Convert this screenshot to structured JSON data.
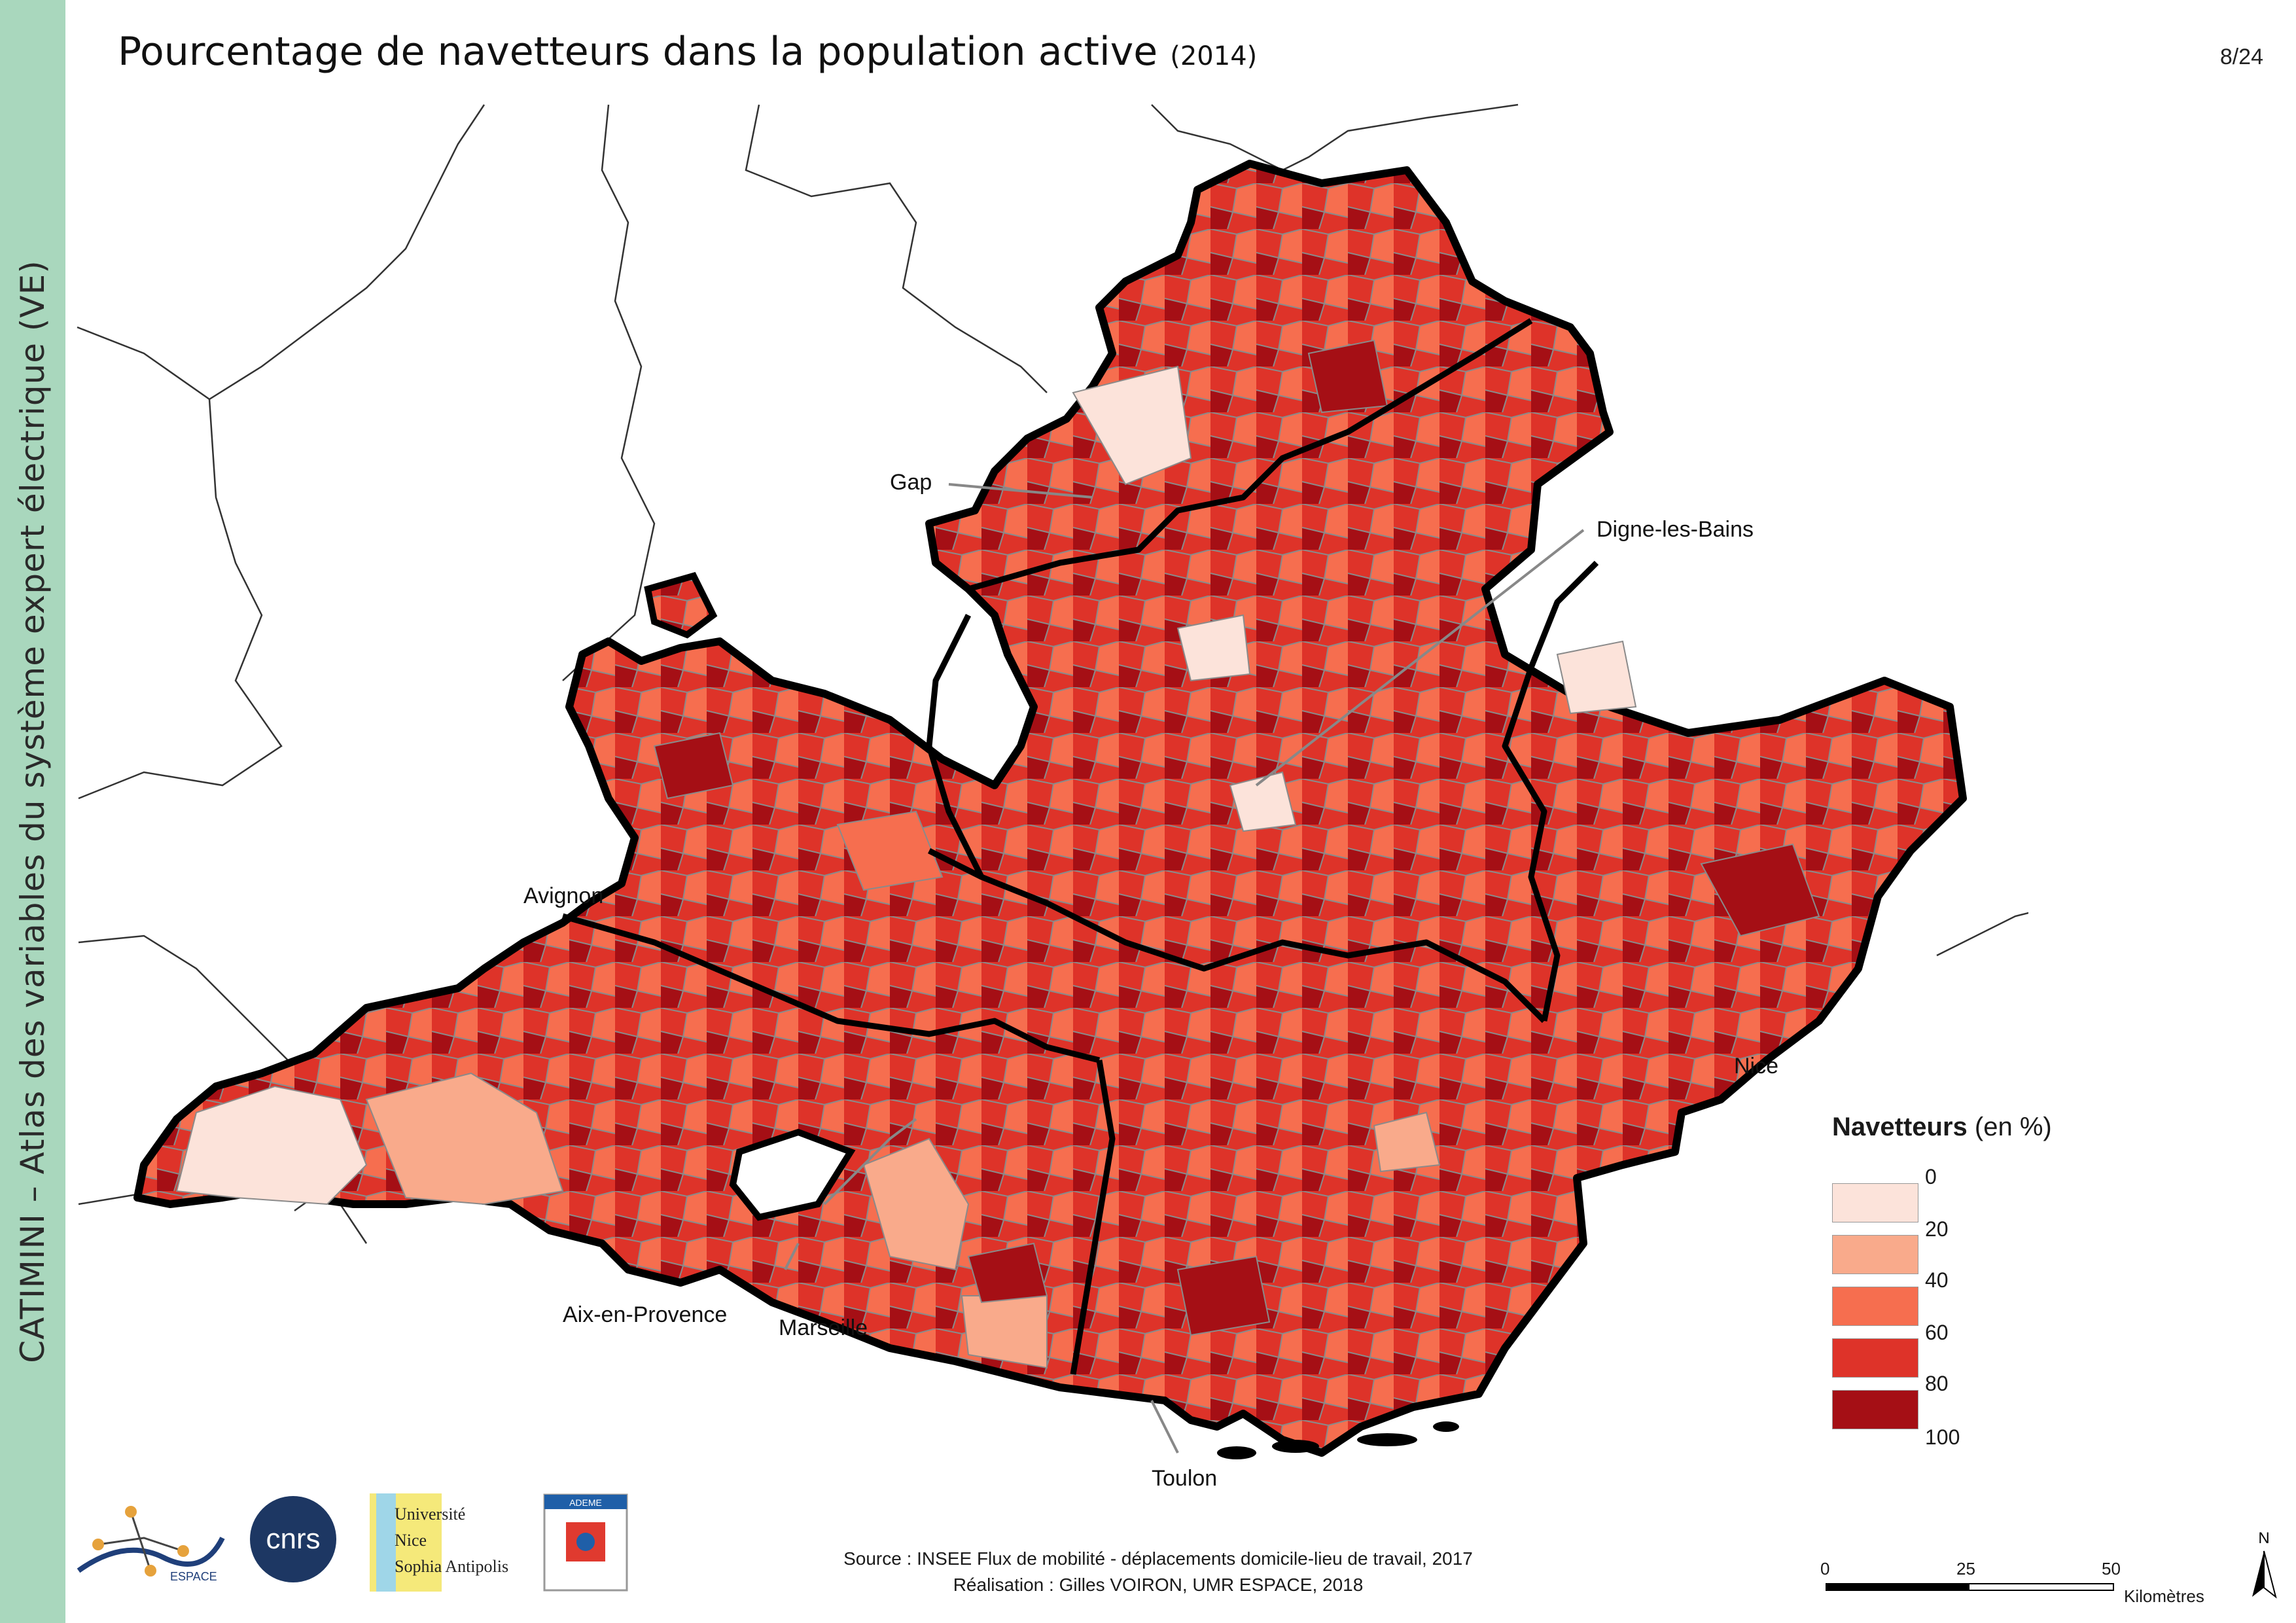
{
  "sidebar": {
    "text": "CATIMINI – Atlas des variables du système expert électrique (VE)"
  },
  "header": {
    "title": "Pourcentage de navetteurs dans la population active",
    "year": "(2014)",
    "page": "8/24"
  },
  "map": {
    "cities": [
      "Gap",
      "Digne-les-Bains",
      "Avignon",
      "Nice",
      "Aix-en-Provence",
      "Marseille",
      "Toulon"
    ],
    "region_outline_color": "#000000",
    "class_colors": [
      "#fce3da",
      "#f9aa8b",
      "#f66e4f",
      "#de3329",
      "#a50f15"
    ]
  },
  "legend": {
    "title_bold": "Navetteurs",
    "title_unit": "(en %)",
    "ticks": [
      "0",
      "20",
      "40",
      "60",
      "80",
      "100"
    ]
  },
  "source": {
    "line1": "Source : INSEE Flux de mobilité - déplacements domicile-lieu de travail, 2017",
    "line2": "Réalisation : Gilles VOIRON, UMR ESPACE, 2018"
  },
  "scale": {
    "ticks": [
      "0",
      "25",
      "50"
    ],
    "unit": "Kilomètres"
  },
  "north": "N",
  "logos": {
    "espace": "ESPACE",
    "cnrs": "cnrs",
    "unice": [
      "Université",
      "Nice",
      "Sophia Antipolis"
    ],
    "ademe": "ADEME"
  }
}
